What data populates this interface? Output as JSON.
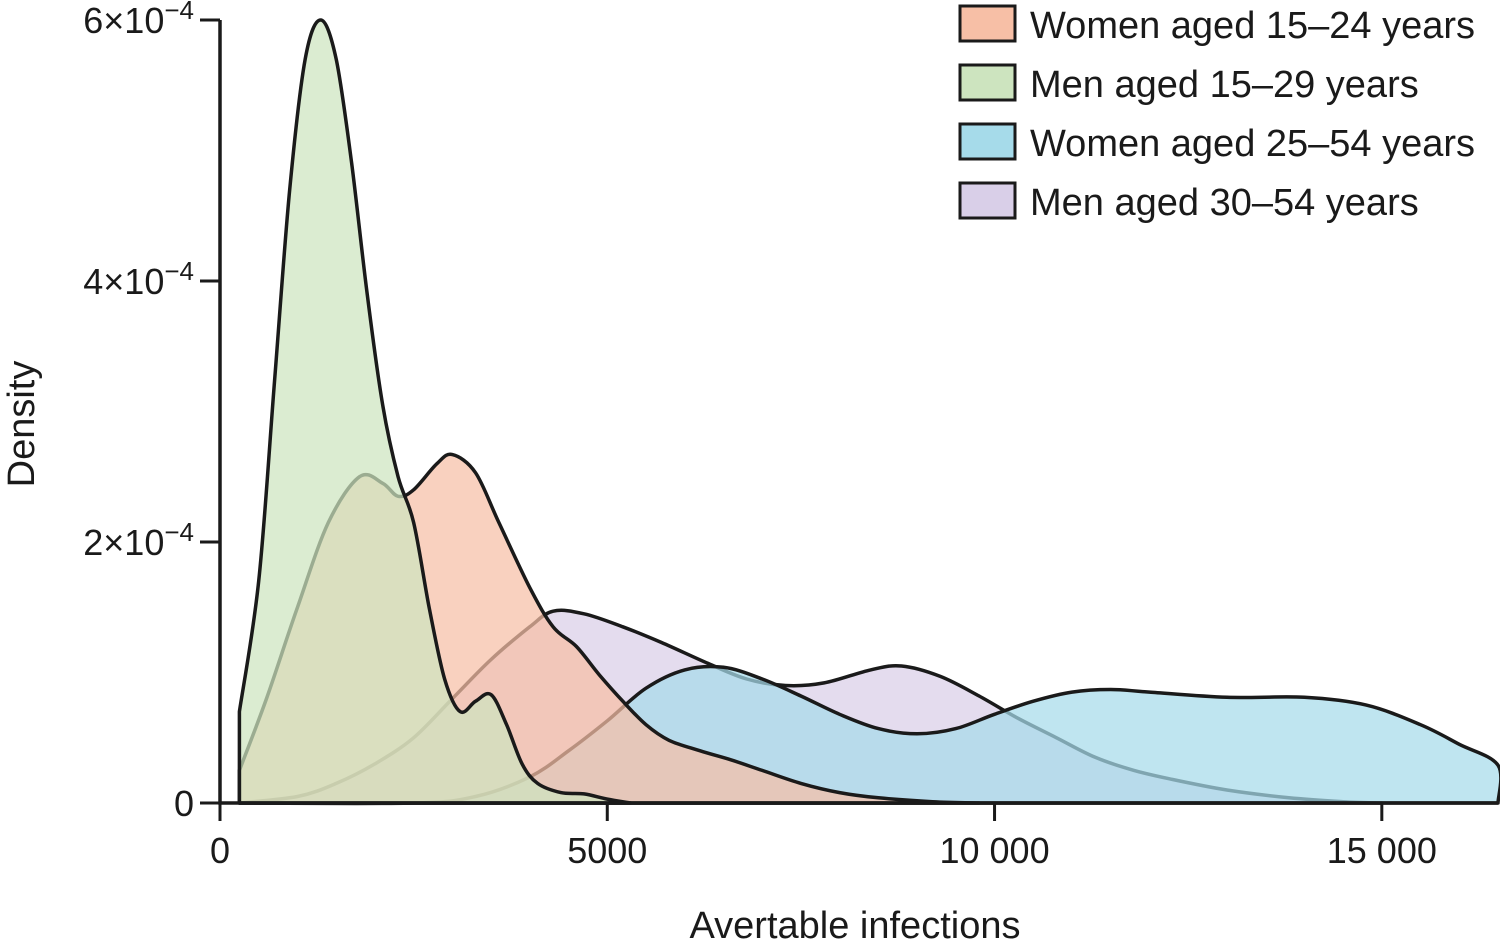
{
  "chart_data": {
    "type": "area",
    "title": "",
    "xlabel": "Avertable infections",
    "ylabel": "Density",
    "xlim": [
      0,
      16500
    ],
    "ylim": [
      0,
      0.0006
    ],
    "xticks": [
      {
        "value": 0,
        "label": "0"
      },
      {
        "value": 5000,
        "label": "5000"
      },
      {
        "value": 10000,
        "label": "10 000"
      },
      {
        "value": 15000,
        "label": "15 000"
      }
    ],
    "yticks": [
      {
        "value": 0,
        "label": "0",
        "mantissa": "",
        "exponent": ""
      },
      {
        "value": 0.0002,
        "label": "2×10−4",
        "mantissa": "2",
        "exponent": "−4"
      },
      {
        "value": 0.0004,
        "label": "4×10−4",
        "mantissa": "4",
        "exponent": "−4"
      },
      {
        "value": 0.0006,
        "label": "6×10−4",
        "mantissa": "6",
        "exponent": "−4"
      }
    ],
    "grid": false,
    "legend_position": "top-right",
    "series": [
      {
        "name": "Men aged 30–54 years",
        "color": "#d9cfe8",
        "points": [
          [
            250,
            0
          ],
          [
            1000,
            5e-06
          ],
          [
            1500,
            1.5e-05
          ],
          [
            2000,
            3e-05
          ],
          [
            2500,
            5e-05
          ],
          [
            3000,
            8e-05
          ],
          [
            3500,
            0.00011
          ],
          [
            4000,
            0.000135
          ],
          [
            4300,
            0.000147
          ],
          [
            4700,
            0.000145
          ],
          [
            5200,
            0.000135
          ],
          [
            5700,
            0.000123
          ],
          [
            6300,
            0.000107
          ],
          [
            6800,
            9.5e-05
          ],
          [
            7300,
            9e-05
          ],
          [
            7800,
            9.2e-05
          ],
          [
            8400,
            0.000102
          ],
          [
            8800,
            0.000105
          ],
          [
            9300,
            9.7e-05
          ],
          [
            9800,
            8.2e-05
          ],
          [
            10300,
            6.5e-05
          ],
          [
            10800,
            5e-05
          ],
          [
            11300,
            3.5e-05
          ],
          [
            11800,
            2.5e-05
          ],
          [
            12300,
            1.8e-05
          ],
          [
            13000,
            1e-05
          ],
          [
            13800,
            4e-06
          ],
          [
            14500,
            1e-06
          ],
          [
            15000,
            0
          ]
        ]
      },
      {
        "name": "Women aged 25–54 years",
        "color": "#a6dbea",
        "points": [
          [
            250,
            0
          ],
          [
            2500,
            0
          ],
          [
            3300,
            5e-06
          ],
          [
            4000,
            2e-05
          ],
          [
            4500,
            4e-05
          ],
          [
            5000,
            6.3e-05
          ],
          [
            5500,
            8.8e-05
          ],
          [
            6000,
            0.000102
          ],
          [
            6500,
            0.000104
          ],
          [
            7000,
            9.5e-05
          ],
          [
            7500,
            8.2e-05
          ],
          [
            8000,
            6.8e-05
          ],
          [
            8500,
            5.7e-05
          ],
          [
            9000,
            5.3e-05
          ],
          [
            9500,
            5.7e-05
          ],
          [
            10000,
            6.8e-05
          ],
          [
            10500,
            7.8e-05
          ],
          [
            11000,
            8.5e-05
          ],
          [
            11500,
            8.7e-05
          ],
          [
            12000,
            8.5e-05
          ],
          [
            13000,
            8.1e-05
          ],
          [
            14000,
            8.1e-05
          ],
          [
            14800,
            7.5e-05
          ],
          [
            15500,
            6e-05
          ],
          [
            16000,
            4.5e-05
          ],
          [
            16500,
            2.9e-05
          ],
          [
            16500,
            0
          ]
        ]
      },
      {
        "name": "Women aged 15–24 years",
        "color": "#f7bfa6",
        "points": [
          [
            250,
            2.5e-05
          ],
          [
            600,
            8e-05
          ],
          [
            1000,
            0.00015
          ],
          [
            1400,
            0.000215
          ],
          [
            1800,
            0.00025
          ],
          [
            2100,
            0.000245
          ],
          [
            2300,
            0.000235
          ],
          [
            2500,
            0.00024
          ],
          [
            2800,
            0.00026
          ],
          [
            3000,
            0.000267
          ],
          [
            3300,
            0.000253
          ],
          [
            3600,
            0.000215
          ],
          [
            4000,
            0.000165
          ],
          [
            4300,
            0.000135
          ],
          [
            4600,
            0.00012
          ],
          [
            4900,
            9.8e-05
          ],
          [
            5200,
            7.8e-05
          ],
          [
            5500,
            6e-05
          ],
          [
            5800,
            4.8e-05
          ],
          [
            6200,
            4e-05
          ],
          [
            6600,
            3.3e-05
          ],
          [
            7000,
            2.5e-05
          ],
          [
            7500,
            1.5e-05
          ],
          [
            8000,
            8e-06
          ],
          [
            8500,
            4e-06
          ],
          [
            9200,
            1e-06
          ],
          [
            9800,
            0
          ]
        ]
      },
      {
        "name": "Men aged 15–29 years",
        "color": "#cde4bf",
        "points": [
          [
            250,
            7e-05
          ],
          [
            500,
            0.00017
          ],
          [
            700,
            0.00032
          ],
          [
            900,
            0.00047
          ],
          [
            1100,
            0.00057
          ],
          [
            1300,
            0.0006
          ],
          [
            1500,
            0.00057
          ],
          [
            1700,
            0.00049
          ],
          [
            1900,
            0.00039
          ],
          [
            2100,
            0.000305
          ],
          [
            2300,
            0.00025
          ],
          [
            2500,
            0.000215
          ],
          [
            2700,
            0.00015
          ],
          [
            2900,
            9.5e-05
          ],
          [
            3100,
            7e-05
          ],
          [
            3300,
            7.8e-05
          ],
          [
            3500,
            8.3e-05
          ],
          [
            3700,
            6e-05
          ],
          [
            3900,
            3e-05
          ],
          [
            4100,
            1.5e-05
          ],
          [
            4400,
            8e-06
          ],
          [
            4700,
            7e-06
          ],
          [
            5000,
            3e-06
          ],
          [
            5300,
            0
          ]
        ]
      }
    ]
  }
}
